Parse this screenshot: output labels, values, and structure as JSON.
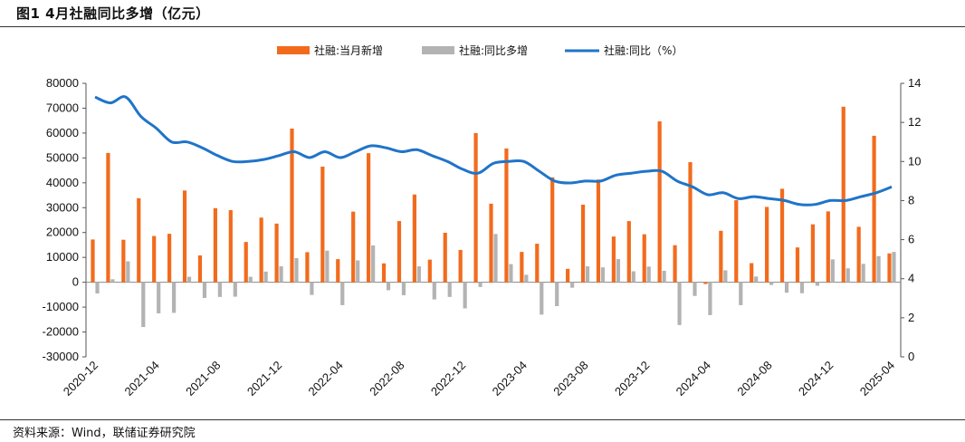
{
  "figure": {
    "title": "图1  4月社融同比多增（亿元）",
    "source": "资料来源：Wind，联储证券研究院"
  },
  "colors": {
    "bar_new": "#F26B1D",
    "bar_yoy": "#B3B3B3",
    "line": "#1F74C9"
  },
  "chart_data": {
    "type": "bar",
    "left_axis": {
      "min": -30000,
      "max": 80000,
      "step": 10000
    },
    "right_axis": {
      "min": 0,
      "max": 14,
      "step": 2
    },
    "legend": {
      "placement": "top-center"
    },
    "x_tick_labels": [
      "2020-12",
      "2021-04",
      "2021-08",
      "2021-12",
      "2022-04",
      "2022-08",
      "2022-12",
      "2023-04",
      "2023-08",
      "2023-12",
      "2024-04",
      "2024-08",
      "2024-12",
      "2025-04"
    ],
    "categories": [
      "2020-12",
      "2021-01",
      "2021-02",
      "2021-03",
      "2021-04",
      "2021-05",
      "2021-06",
      "2021-07",
      "2021-08",
      "2021-09",
      "2021-10",
      "2021-11",
      "2021-12",
      "2022-01",
      "2022-02",
      "2022-03",
      "2022-04",
      "2022-05",
      "2022-06",
      "2022-07",
      "2022-08",
      "2022-09",
      "2022-10",
      "2022-11",
      "2022-12",
      "2023-01",
      "2023-02",
      "2023-03",
      "2023-04",
      "2023-05",
      "2023-06",
      "2023-07",
      "2023-08",
      "2023-09",
      "2023-10",
      "2023-11",
      "2023-12",
      "2024-01",
      "2024-02",
      "2024-03",
      "2024-04",
      "2024-05",
      "2024-06",
      "2024-07",
      "2024-08",
      "2024-09",
      "2024-10",
      "2024-11",
      "2024-12",
      "2025-01",
      "2025-02",
      "2025-03",
      "2025-04"
    ],
    "series": [
      {
        "name": "社融:当月新增",
        "axis": "left",
        "values": [
          17200,
          52000,
          17100,
          33800,
          18600,
          19500,
          36900,
          10800,
          29800,
          29000,
          16200,
          26000,
          23600,
          61800,
          12100,
          46500,
          9300,
          28400,
          51900,
          7600,
          24600,
          35300,
          9100,
          19900,
          13000,
          60000,
          31600,
          53800,
          12200,
          15500,
          42200,
          5400,
          31200,
          41300,
          18400,
          24600,
          19300,
          64700,
          14900,
          48300,
          -700,
          20700,
          33000,
          7700,
          30300,
          37600,
          14000,
          23300,
          28500,
          70600,
          22300,
          58900,
          11600
        ]
      },
      {
        "name": "社融:同比多增",
        "axis": "left",
        "values": [
          -4500,
          1200,
          8400,
          -18000,
          -12500,
          -12300,
          2200,
          -6300,
          -5900,
          -5800,
          2200,
          4300,
          6400,
          9700,
          -5100,
          12700,
          -9200,
          8800,
          14800,
          -3200,
          -5200,
          6400,
          -6900,
          -5900,
          -10500,
          -1900,
          19400,
          7300,
          3000,
          -13000,
          -9600,
          -2200,
          6400,
          6000,
          9300,
          4400,
          6300,
          4600,
          -17200,
          -5500,
          -13200,
          4800,
          -9200,
          2300,
          -1100,
          -4200,
          -4400,
          -1400,
          9200,
          5600,
          7400,
          10500,
          12200
        ]
      },
      {
        "name": "社融:同比（%）",
        "axis": "right",
        "values": [
          13.3,
          13.0,
          13.3,
          12.3,
          11.7,
          11.0,
          11.0,
          10.7,
          10.3,
          10.0,
          10.0,
          10.1,
          10.3,
          10.5,
          10.2,
          10.5,
          10.2,
          10.5,
          10.8,
          10.7,
          10.5,
          10.6,
          10.3,
          10.0,
          9.6,
          9.4,
          9.9,
          10.0,
          10.0,
          9.5,
          9.0,
          8.9,
          9.0,
          9.0,
          9.3,
          9.4,
          9.5,
          9.5,
          9.0,
          8.7,
          8.3,
          8.4,
          8.1,
          8.2,
          8.1,
          8.0,
          7.8,
          7.8,
          8.0,
          8.0,
          8.2,
          8.4,
          8.7
        ]
      }
    ]
  }
}
